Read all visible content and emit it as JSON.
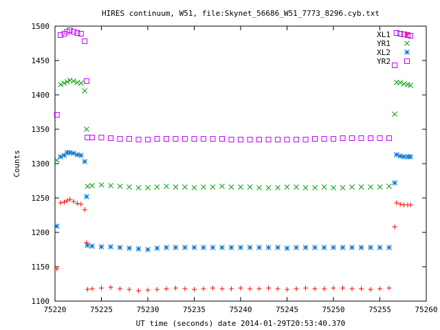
{
  "chart_data": {
    "type": "scatter",
    "title": "HIRES continuum, W51, file:Skynet_56686_W51_7773_8296.cyb.txt",
    "xlabel": "UT time (seconds) date 2014-01-29T20:53:40.370",
    "ylabel": "Counts",
    "xlim": [
      75220,
      75260
    ],
    "ylim": [
      1100,
      1500
    ],
    "xticks": [
      75220,
      75225,
      75230,
      75235,
      75240,
      75245,
      75250,
      75255,
      75260
    ],
    "yticks": [
      1100,
      1150,
      1200,
      1250,
      1300,
      1350,
      1400,
      1450,
      1500
    ],
    "x_tick_labels": [
      "75220",
      "75225",
      "75230",
      "75235",
      "75240",
      "75245",
      "75250",
      "75255",
      "75260"
    ],
    "y_tick_labels": [
      "1100",
      "1150",
      "1200",
      "1250",
      "1300",
      "1350",
      "1400",
      "1450",
      "1500"
    ],
    "legend_position": "top-right",
    "grid": false,
    "series": [
      {
        "name": "XL1",
        "color": "#ff0000",
        "marker": "plus",
        "x": [
          75220.2,
          75220.6,
          75221.0,
          75221.3,
          75221.6,
          75222.0,
          75222.4,
          75222.8,
          75223.2,
          75223.4,
          75223.5,
          75224.0,
          75225.0,
          75226.0,
          75227.0,
          75228.0,
          75229.0,
          75230.0,
          75231.0,
          75232.0,
          75233.0,
          75234.0,
          75235.0,
          75236.0,
          75237.0,
          75238.0,
          75239.0,
          75240.0,
          75241.0,
          75242.0,
          75243.0,
          75244.0,
          75245.0,
          75246.0,
          75247.0,
          75248.0,
          75249.0,
          75250.0,
          75251.0,
          75252.0,
          75253.0,
          75254.0,
          75255.0,
          75256.0,
          75256.6,
          75256.8,
          75257.2,
          75257.6,
          75258.0,
          75258.3
        ],
        "y": [
          1147,
          1243,
          1244,
          1246,
          1248,
          1245,
          1242,
          1241,
          1233,
          1185,
          1117,
          1118,
          1119,
          1120,
          1118,
          1117,
          1115,
          1116,
          1117,
          1118,
          1119,
          1118,
          1117,
          1118,
          1119,
          1118,
          1118,
          1119,
          1118,
          1118,
          1119,
          1118,
          1117,
          1118,
          1119,
          1118,
          1118,
          1119,
          1119,
          1118,
          1118,
          1117,
          1118,
          1119,
          1208,
          1243,
          1241,
          1240,
          1240,
          1240
        ]
      },
      {
        "name": "YR1",
        "color": "#00a000",
        "marker": "x",
        "x": [
          75220.2,
          75220.6,
          75221.0,
          75221.3,
          75221.6,
          75222.0,
          75222.4,
          75222.8,
          75223.2,
          75223.4,
          75223.5,
          75224.0,
          75225.0,
          75226.0,
          75227.0,
          75228.0,
          75229.0,
          75230.0,
          75231.0,
          75232.0,
          75233.0,
          75234.0,
          75235.0,
          75236.0,
          75237.0,
          75238.0,
          75239.0,
          75240.0,
          75241.0,
          75242.0,
          75243.0,
          75244.0,
          75245.0,
          75246.0,
          75247.0,
          75248.0,
          75249.0,
          75250.0,
          75251.0,
          75252.0,
          75253.0,
          75254.0,
          75255.0,
          75256.0,
          75256.6,
          75256.8,
          75257.2,
          75257.6,
          75258.0,
          75258.3
        ],
        "y": [
          1305,
          1415,
          1417,
          1419,
          1421,
          1420,
          1418,
          1417,
          1406,
          1350,
          1267,
          1268,
          1269,
          1268,
          1267,
          1266,
          1265,
          1265,
          1266,
          1267,
          1266,
          1266,
          1265,
          1266,
          1266,
          1267,
          1266,
          1266,
          1266,
          1265,
          1265,
          1265,
          1266,
          1266,
          1265,
          1265,
          1266,
          1265,
          1265,
          1266,
          1266,
          1266,
          1266,
          1267,
          1372,
          1418,
          1418,
          1416,
          1415,
          1414
        ]
      },
      {
        "name": "XL2",
        "color": "#0070d0",
        "marker": "star",
        "x": [
          75220.2,
          75220.6,
          75221.0,
          75221.3,
          75221.6,
          75222.0,
          75222.4,
          75222.8,
          75223.2,
          75223.4,
          75223.5,
          75224.0,
          75225.0,
          75226.0,
          75227.0,
          75228.0,
          75229.0,
          75230.0,
          75231.0,
          75232.0,
          75233.0,
          75234.0,
          75235.0,
          75236.0,
          75237.0,
          75238.0,
          75239.0,
          75240.0,
          75241.0,
          75242.0,
          75243.0,
          75244.0,
          75245.0,
          75246.0,
          75247.0,
          75248.0,
          75249.0,
          75250.0,
          75251.0,
          75252.0,
          75253.0,
          75254.0,
          75255.0,
          75256.0,
          75256.6,
          75256.8,
          75257.2,
          75257.6,
          75258.0,
          75258.3
        ],
        "y": [
          1209,
          1310,
          1312,
          1316,
          1316,
          1315,
          1313,
          1312,
          1303,
          1252,
          1181,
          1180,
          1179,
          1179,
          1178,
          1177,
          1176,
          1175,
          1177,
          1178,
          1178,
          1178,
          1178,
          1178,
          1178,
          1178,
          1178,
          1178,
          1178,
          1178,
          1178,
          1178,
          1177,
          1178,
          1178,
          1178,
          1178,
          1178,
          1178,
          1178,
          1178,
          1178,
          1178,
          1178,
          1272,
          1313,
          1311,
          1310,
          1310,
          1310
        ]
      },
      {
        "name": "YR2",
        "color": "#c000ff",
        "marker": "square",
        "x": [
          75220.2,
          75220.6,
          75221.0,
          75221.3,
          75221.6,
          75222.0,
          75222.4,
          75222.8,
          75223.2,
          75223.4,
          75223.5,
          75224.0,
          75225.0,
          75226.0,
          75227.0,
          75228.0,
          75229.0,
          75230.0,
          75231.0,
          75232.0,
          75233.0,
          75234.0,
          75235.0,
          75236.0,
          75237.0,
          75238.0,
          75239.0,
          75240.0,
          75241.0,
          75242.0,
          75243.0,
          75244.0,
          75245.0,
          75246.0,
          75247.0,
          75248.0,
          75249.0,
          75250.0,
          75251.0,
          75252.0,
          75253.0,
          75254.0,
          75255.0,
          75256.0,
          75256.6,
          75256.8,
          75257.2,
          75257.6,
          75258.0,
          75258.3
        ],
        "y": [
          1371,
          1487,
          1489,
          1492,
          1494,
          1492,
          1490,
          1489,
          1478,
          1420,
          1338,
          1338,
          1338,
          1337,
          1336,
          1336,
          1335,
          1335,
          1336,
          1336,
          1336,
          1336,
          1336,
          1336,
          1336,
          1336,
          1335,
          1335,
          1335,
          1335,
          1335,
          1335,
          1335,
          1335,
          1335,
          1336,
          1336,
          1336,
          1337,
          1337,
          1337,
          1337,
          1337,
          1337,
          1443,
          1490,
          1489,
          1488,
          1487,
          1486
        ]
      }
    ]
  }
}
